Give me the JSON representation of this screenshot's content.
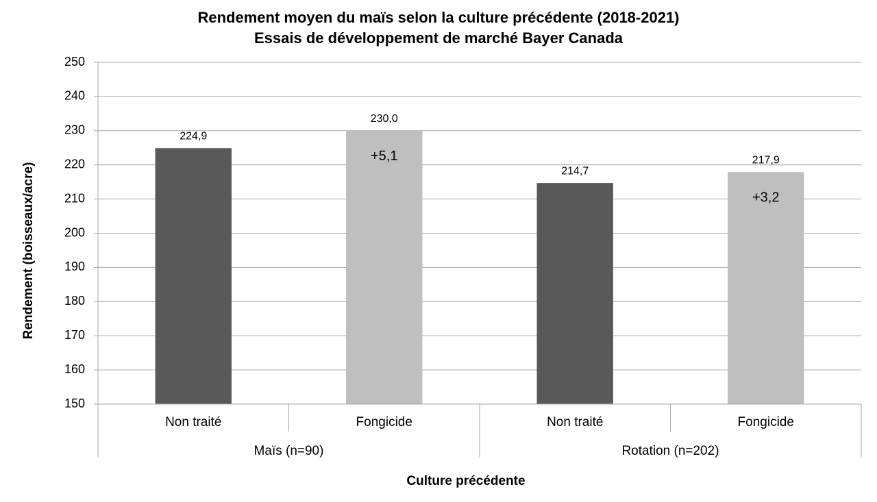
{
  "chart_data": {
    "type": "bar",
    "title": "Rendement moyen du maïs selon la culture précédente (2018-2021)",
    "subtitle": "Essais de développement de marché Bayer Canada",
    "y_label": "Rendement (boisseaux/acre)",
    "x_label": "Culture précédente",
    "groups": [
      {
        "name": "Maïs (n=90)",
        "categories": [
          "Non traité",
          "Fongicide"
        ],
        "values": [
          224.9,
          230.0
        ],
        "value_labels": [
          "224,9",
          "230,0"
        ],
        "annotations": [
          null,
          "+5,1"
        ]
      },
      {
        "name": "Rotation (n=202)",
        "categories": [
          "Non traité",
          "Fongicide"
        ],
        "values": [
          214.7,
          217.9
        ],
        "value_labels": [
          "214,7",
          "217,9"
        ],
        "annotations": [
          null,
          "+3,2"
        ]
      }
    ],
    "colors": [
      "#595959",
      "#bfbfbf"
    ],
    "ylim": [
      150,
      250
    ],
    "yticks": [
      150,
      160,
      170,
      180,
      190,
      200,
      210,
      220,
      230,
      240,
      250
    ],
    "grid": true
  }
}
